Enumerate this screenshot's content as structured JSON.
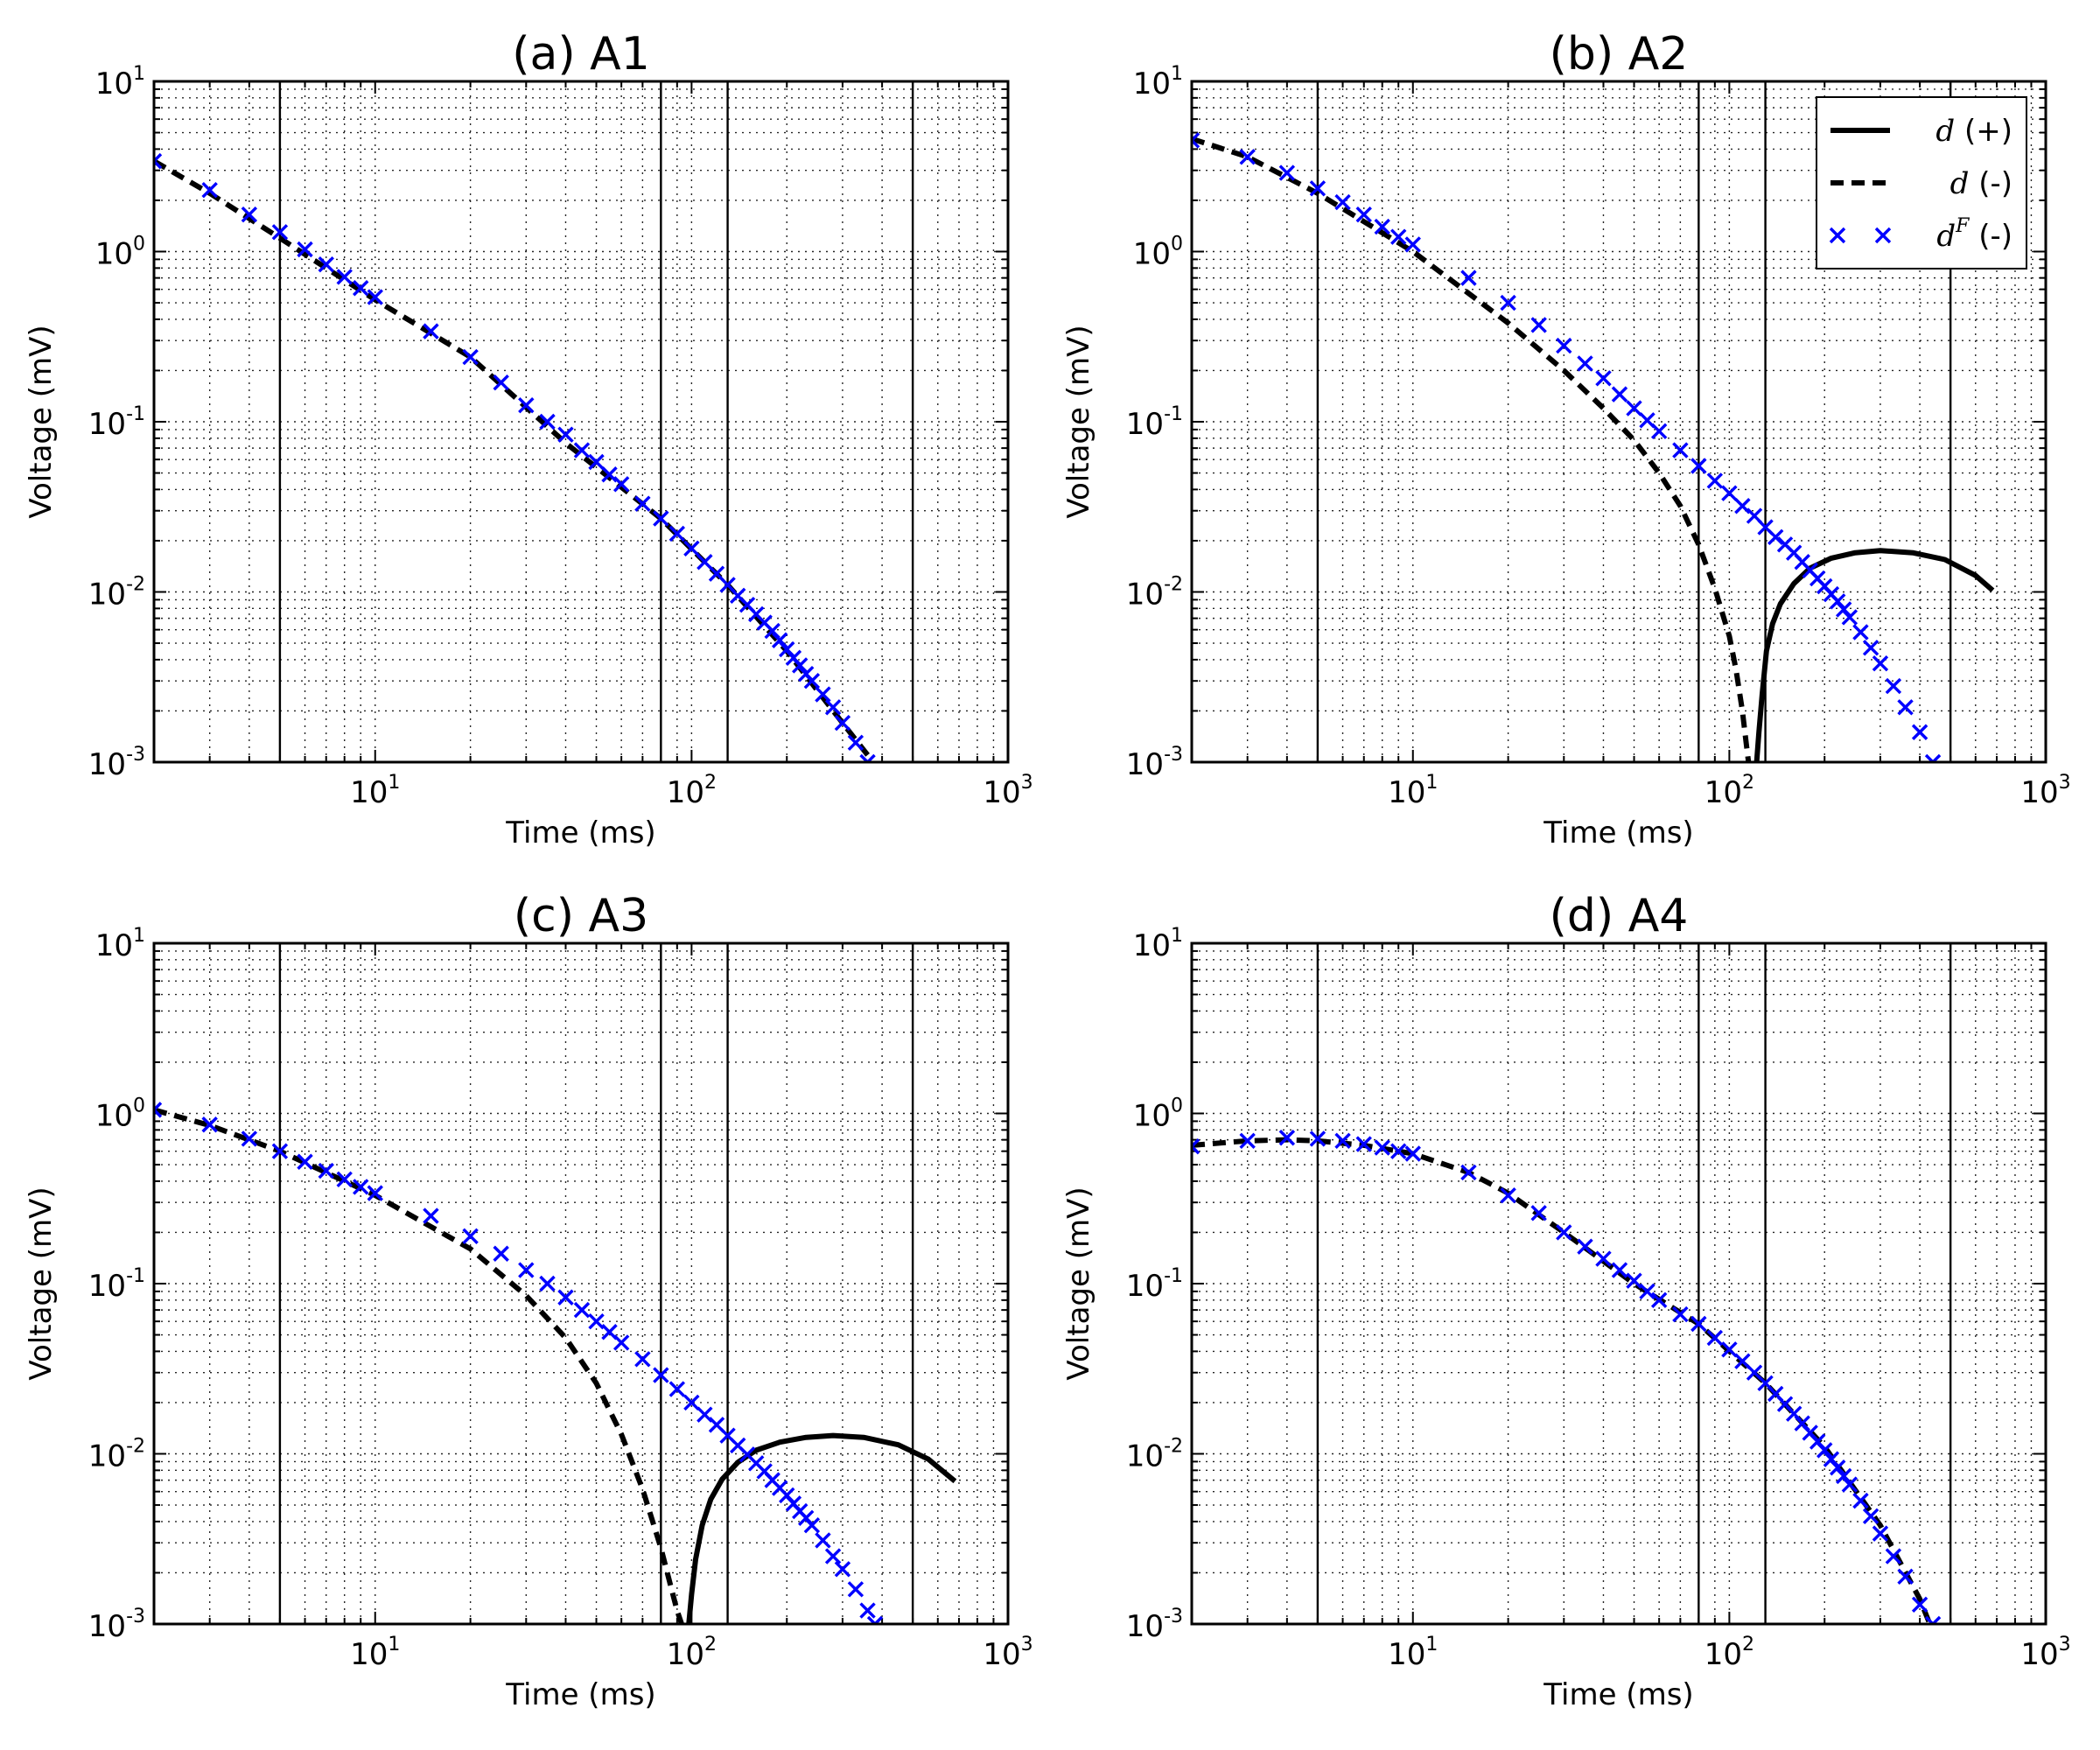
{
  "chart_data": [
    {
      "type": "line",
      "title": "(a) A1",
      "xlabel": "Time (ms)",
      "ylabel": "Voltage (mV)",
      "x_scale": "log",
      "y_scale": "log",
      "xlim": [
        2,
        1000
      ],
      "ylim": [
        0.001,
        10
      ],
      "grid": true,
      "x_tick_labels": [
        "10",
        "10",
        "10"
      ],
      "x_tick_exponents": [
        "1",
        "2",
        "3"
      ],
      "x_tick_values": [
        10,
        100,
        1000
      ],
      "y_tick_labels": [
        "10",
        "10",
        "10",
        "10",
        "10"
      ],
      "y_tick_exponents": [
        "-3",
        "-2",
        "-1",
        "0",
        "1"
      ],
      "y_tick_values": [
        0.001,
        0.01,
        0.1,
        1,
        10
      ],
      "vertical_lines": [
        5,
        80,
        130,
        500
      ],
      "series": [
        {
          "key": "d_plus",
          "color": "#000000",
          "style": "solid",
          "x": [],
          "y": []
        },
        {
          "key": "d_minus",
          "color": "#000000",
          "style": "dashed",
          "x": [
            2,
            3,
            5,
            10,
            20,
            40,
            80,
            130,
            200,
            300,
            360
          ],
          "y": [
            3.4,
            2.2,
            1.2,
            0.52,
            0.24,
            0.075,
            0.027,
            0.011,
            0.0045,
            0.0017,
            0.0011
          ]
        },
        {
          "key": "dF_minus",
          "color": "#0000ff",
          "style": "markers",
          "x": [
            2,
            3,
            4,
            5,
            6,
            7,
            8,
            9,
            10,
            15,
            20,
            25,
            30,
            35,
            40,
            45,
            50,
            55,
            60,
            70,
            80,
            90,
            100,
            110,
            120,
            130,
            140,
            150,
            160,
            170,
            180,
            190,
            200,
            210,
            220,
            230,
            240,
            260,
            280,
            300,
            330,
            360
          ],
          "y": [
            3.4,
            2.3,
            1.65,
            1.3,
            1.03,
            0.84,
            0.71,
            0.61,
            0.54,
            0.34,
            0.24,
            0.17,
            0.125,
            0.1,
            0.084,
            0.068,
            0.058,
            0.049,
            0.043,
            0.033,
            0.027,
            0.022,
            0.018,
            0.015,
            0.0128,
            0.011,
            0.0095,
            0.0084,
            0.0074,
            0.0066,
            0.0059,
            0.0052,
            0.0046,
            0.0041,
            0.0037,
            0.0033,
            0.003,
            0.0025,
            0.0021,
            0.0017,
            0.0013,
            0.001
          ]
        }
      ]
    },
    {
      "type": "line",
      "title": "(b) A2",
      "xlabel": "Time (ms)",
      "ylabel": "Voltage (mV)",
      "x_scale": "log",
      "y_scale": "log",
      "xlim": [
        2,
        1000
      ],
      "ylim": [
        0.001,
        10
      ],
      "grid": true,
      "x_tick_labels": [
        "10",
        "10",
        "10"
      ],
      "x_tick_exponents": [
        "1",
        "2",
        "3"
      ],
      "x_tick_values": [
        10,
        100,
        1000
      ],
      "y_tick_labels": [
        "10",
        "10",
        "10",
        "10",
        "10"
      ],
      "y_tick_exponents": [
        "-3",
        "-2",
        "-1",
        "0",
        "1"
      ],
      "y_tick_values": [
        0.001,
        0.01,
        0.1,
        1,
        10
      ],
      "vertical_lines": [
        5,
        80,
        130,
        500
      ],
      "legend": {
        "position": "top-right",
        "entries": [
          {
            "var": "d",
            "sup": "",
            "text": " (+)",
            "style": "solid"
          },
          {
            "var": "d",
            "sup": "",
            "text": " (-)",
            "style": "dashed"
          },
          {
            "var": "d",
            "sup": "F",
            "text": " (-)",
            "style": "markers"
          }
        ]
      },
      "series": [
        {
          "key": "d_plus",
          "color": "#000000",
          "style": "solid",
          "x": [
            122,
            124,
            127,
            131,
            137,
            145,
            160,
            180,
            210,
            250,
            300,
            380,
            480,
            600,
            680
          ],
          "y": [
            0.001,
            0.0015,
            0.0025,
            0.0045,
            0.0065,
            0.0085,
            0.0112,
            0.0138,
            0.0158,
            0.017,
            0.0175,
            0.017,
            0.0155,
            0.0125,
            0.0102
          ]
        },
        {
          "key": "d_minus",
          "color": "#000000",
          "style": "dashed",
          "x": [
            2,
            3,
            5,
            10,
            20,
            30,
            40,
            50,
            60,
            70,
            80,
            90,
            100,
            105,
            110,
            113,
            115
          ],
          "y": [
            4.6,
            3.6,
            2.2,
            1.0,
            0.38,
            0.2,
            0.12,
            0.078,
            0.05,
            0.032,
            0.019,
            0.0105,
            0.0055,
            0.0035,
            0.002,
            0.0013,
            0.001
          ]
        },
        {
          "key": "dF_minus",
          "color": "#0000ff",
          "style": "markers",
          "x": [
            2,
            3,
            4,
            5,
            6,
            7,
            8,
            9,
            10,
            15,
            20,
            25,
            30,
            35,
            40,
            45,
            50,
            55,
            60,
            70,
            80,
            90,
            100,
            110,
            120,
            130,
            140,
            150,
            160,
            170,
            180,
            190,
            200,
            210,
            220,
            230,
            240,
            260,
            280,
            300,
            330,
            360,
            400,
            440
          ],
          "y": [
            4.5,
            3.6,
            2.9,
            2.35,
            1.95,
            1.65,
            1.4,
            1.22,
            1.1,
            0.7,
            0.5,
            0.37,
            0.28,
            0.22,
            0.18,
            0.145,
            0.12,
            0.102,
            0.088,
            0.068,
            0.055,
            0.045,
            0.038,
            0.032,
            0.028,
            0.024,
            0.021,
            0.019,
            0.017,
            0.015,
            0.0134,
            0.012,
            0.0108,
            0.0097,
            0.0088,
            0.0079,
            0.0071,
            0.0058,
            0.0047,
            0.0038,
            0.0028,
            0.0021,
            0.0015,
            0.001
          ]
        }
      ]
    },
    {
      "type": "line",
      "title": "(c) A3",
      "xlabel": "Time (ms)",
      "ylabel": "Voltage (mV)",
      "x_scale": "log",
      "y_scale": "log",
      "xlim": [
        2,
        1000
      ],
      "ylim": [
        0.001,
        10
      ],
      "grid": true,
      "x_tick_labels": [
        "10",
        "10",
        "10"
      ],
      "x_tick_exponents": [
        "1",
        "2",
        "3"
      ],
      "x_tick_values": [
        10,
        100,
        1000
      ],
      "y_tick_labels": [
        "10",
        "10",
        "10",
        "10",
        "10"
      ],
      "y_tick_exponents": [
        "-3",
        "-2",
        "-1",
        "0",
        "1"
      ],
      "y_tick_values": [
        0.001,
        0.01,
        0.1,
        1,
        10
      ],
      "vertical_lines": [
        5,
        80,
        130,
        500
      ],
      "series": [
        {
          "key": "d_plus",
          "color": "#000000",
          "style": "solid",
          "x": [
            98,
            100,
            103,
            108,
            115,
            125,
            140,
            160,
            190,
            230,
            280,
            350,
            450,
            560,
            680
          ],
          "y": [
            0.001,
            0.0015,
            0.0024,
            0.0038,
            0.0054,
            0.0071,
            0.0089,
            0.0105,
            0.0117,
            0.0125,
            0.0128,
            0.0125,
            0.0113,
            0.0093,
            0.0069
          ]
        },
        {
          "key": "d_minus",
          "color": "#000000",
          "style": "dashed",
          "x": [
            2,
            3,
            5,
            10,
            20,
            30,
            40,
            50,
            60,
            70,
            80,
            85,
            90,
            93
          ],
          "y": [
            1.05,
            0.85,
            0.6,
            0.33,
            0.16,
            0.085,
            0.048,
            0.026,
            0.013,
            0.0062,
            0.0028,
            0.0018,
            0.0012,
            0.001
          ]
        },
        {
          "key": "dF_minus",
          "color": "#0000ff",
          "style": "markers",
          "x": [
            2,
            3,
            4,
            5,
            6,
            7,
            8,
            9,
            10,
            15,
            20,
            25,
            30,
            35,
            40,
            45,
            50,
            55,
            60,
            70,
            80,
            90,
            100,
            110,
            120,
            130,
            140,
            150,
            160,
            170,
            180,
            190,
            200,
            210,
            220,
            230,
            240,
            260,
            280,
            300,
            330,
            360,
            380
          ],
          "y": [
            1.05,
            0.86,
            0.71,
            0.6,
            0.52,
            0.46,
            0.41,
            0.37,
            0.34,
            0.25,
            0.19,
            0.15,
            0.12,
            0.1,
            0.083,
            0.07,
            0.06,
            0.052,
            0.045,
            0.036,
            0.029,
            0.024,
            0.02,
            0.017,
            0.0148,
            0.0128,
            0.0112,
            0.0099,
            0.0088,
            0.0079,
            0.007,
            0.0063,
            0.0057,
            0.0051,
            0.0046,
            0.0042,
            0.0038,
            0.0031,
            0.0025,
            0.0021,
            0.0016,
            0.0012,
            0.001
          ]
        }
      ]
    },
    {
      "type": "line",
      "title": "(d) A4",
      "xlabel": "Time (ms)",
      "ylabel": "Voltage (mV)",
      "x_scale": "log",
      "y_scale": "log",
      "xlim": [
        2,
        1000
      ],
      "ylim": [
        0.001,
        10
      ],
      "grid": true,
      "x_tick_labels": [
        "10",
        "10",
        "10"
      ],
      "x_tick_exponents": [
        "1",
        "2",
        "3"
      ],
      "x_tick_values": [
        10,
        100,
        1000
      ],
      "y_tick_labels": [
        "10",
        "10",
        "10",
        "10",
        "10"
      ],
      "y_tick_exponents": [
        "-3",
        "-2",
        "-1",
        "0",
        "1"
      ],
      "y_tick_values": [
        0.001,
        0.01,
        0.1,
        1,
        10
      ],
      "vertical_lines": [
        5,
        80,
        130,
        500
      ],
      "series": [
        {
          "key": "d_plus",
          "color": "#000000",
          "style": "solid",
          "x": [],
          "y": []
        },
        {
          "key": "d_minus",
          "color": "#000000",
          "style": "dashed",
          "x": [
            2,
            3,
            4,
            5,
            7,
            10,
            15,
            20,
            30,
            50,
            80,
            130,
            200,
            300,
            400,
            430
          ],
          "y": [
            0.65,
            0.69,
            0.7,
            0.69,
            0.65,
            0.58,
            0.45,
            0.34,
            0.2,
            0.1,
            0.058,
            0.026,
            0.011,
            0.0038,
            0.0014,
            0.001
          ]
        },
        {
          "key": "dF_minus",
          "color": "#0000ff",
          "style": "markers",
          "x": [
            2,
            3,
            4,
            5,
            6,
            7,
            8,
            9,
            10,
            15,
            20,
            25,
            30,
            35,
            40,
            45,
            50,
            55,
            60,
            70,
            80,
            90,
            100,
            110,
            120,
            130,
            140,
            150,
            160,
            170,
            180,
            190,
            200,
            210,
            220,
            230,
            240,
            260,
            280,
            300,
            330,
            360,
            400,
            440
          ],
          "y": [
            0.64,
            0.69,
            0.72,
            0.71,
            0.69,
            0.66,
            0.63,
            0.6,
            0.58,
            0.45,
            0.33,
            0.26,
            0.2,
            0.165,
            0.14,
            0.12,
            0.104,
            0.09,
            0.08,
            0.066,
            0.058,
            0.048,
            0.041,
            0.035,
            0.03,
            0.026,
            0.0225,
            0.0196,
            0.0172,
            0.0151,
            0.0133,
            0.0118,
            0.0105,
            0.0093,
            0.0083,
            0.0074,
            0.0066,
            0.0053,
            0.0043,
            0.0034,
            0.0025,
            0.0019,
            0.0013,
            0.001
          ]
        }
      ]
    }
  ]
}
